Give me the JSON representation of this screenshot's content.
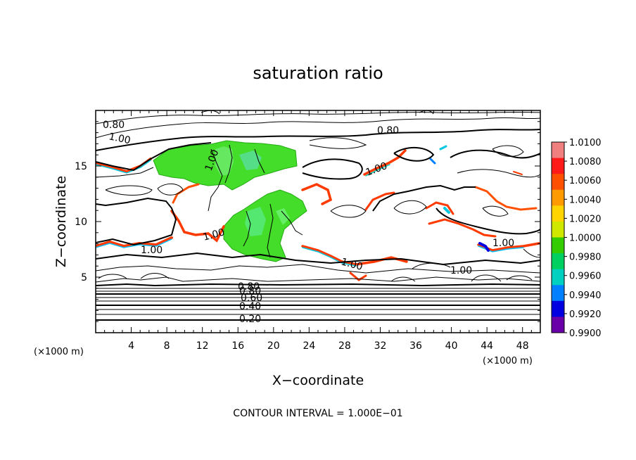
{
  "chart_data": {
    "type": "heatmap",
    "title": "saturation ratio",
    "xlabel": "X−coordinate",
    "ylabel": "Z−coordinate",
    "x_unit_label": "(×1000 m)",
    "y_unit_label": "(×1000 m)",
    "footer": "CONTOUR INTERVAL = 1.000E−01",
    "xlim": [
      0,
      50
    ],
    "ylim": [
      0,
      20
    ],
    "x_ticks": [
      4,
      8,
      12,
      16,
      20,
      24,
      28,
      32,
      36,
      40,
      44,
      48
    ],
    "y_ticks": [
      5,
      10,
      15
    ],
    "colorbar": {
      "range": [
        0.99,
        1.01
      ],
      "labels": [
        "1.0100",
        "1.0080",
        "1.0060",
        "1.0040",
        "1.0020",
        "1.0000",
        "0.9980",
        "0.9960",
        "0.9940",
        "0.9920",
        "0.9900"
      ],
      "colors": [
        "#f08080",
        "#ff1a1a",
        "#ff5000",
        "#ff9a00",
        "#ffd400",
        "#d0e800",
        "#33cc00",
        "#00d060",
        "#00d0c0",
        "#0080ff",
        "#0000e0",
        "#6a00a8"
      ]
    },
    "contour_labels": [
      "0.20",
      "0.40",
      "0.60",
      "0.80",
      "0.80",
      "0.80",
      "1.00",
      "1.00",
      "1.00",
      "1.00",
      "1.00",
      "1.00",
      "1.00",
      "1.00"
    ],
    "contour_interval": 0.1
  }
}
